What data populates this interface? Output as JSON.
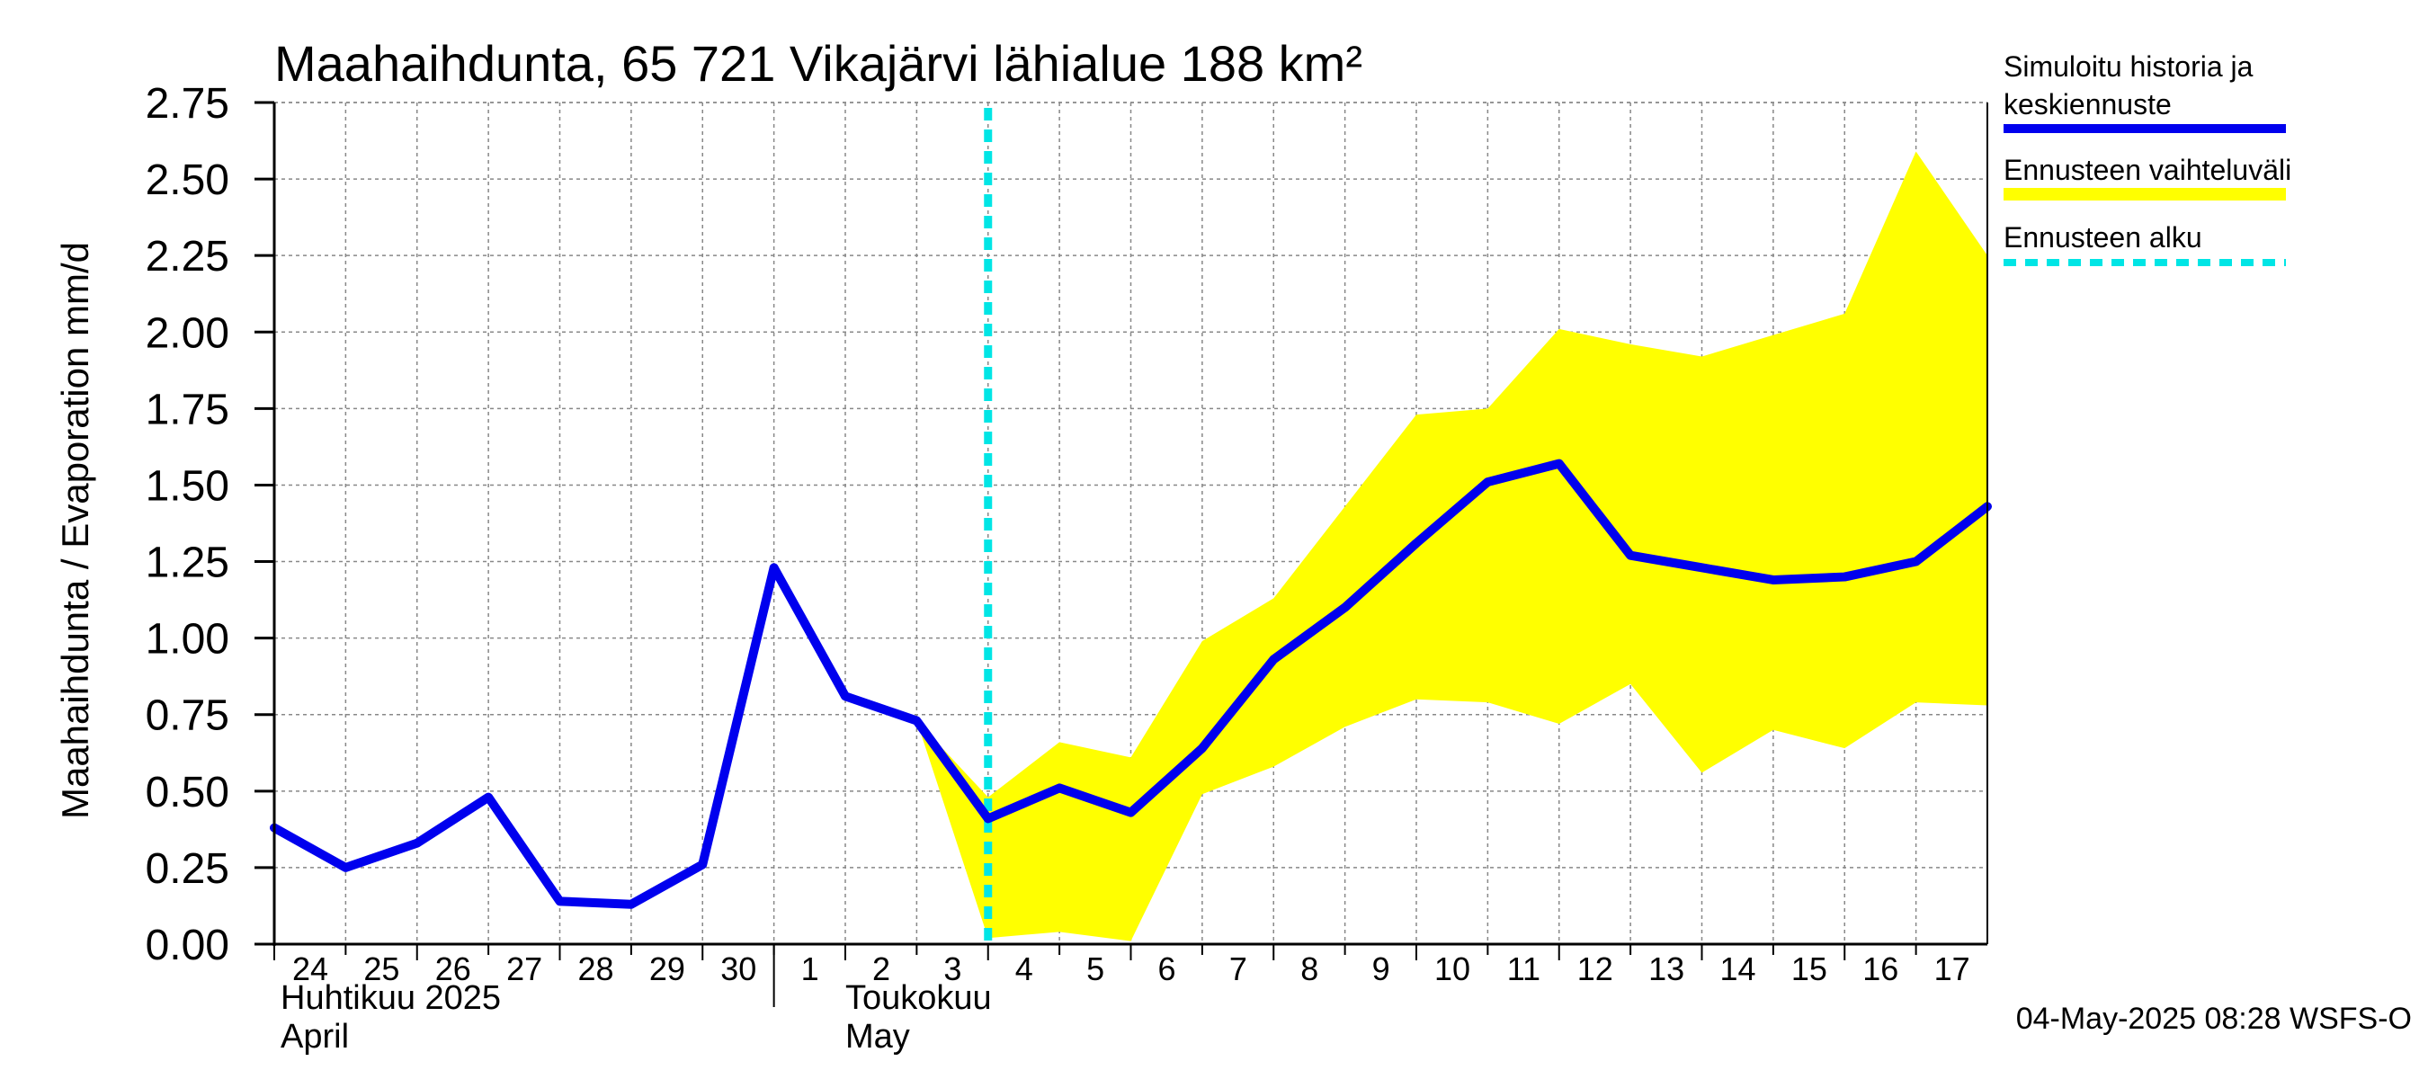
{
  "chart_data": {
    "type": "line",
    "title": "Maahaihdunta, 65 721 Vikajärvi lähialue 188 km²",
    "ylabel": "Maahaihdunta / Evaporation   mm/d",
    "ylim": [
      0,
      2.75
    ],
    "yticks": [
      "0.00",
      "0.25",
      "0.50",
      "0.75",
      "1.00",
      "1.25",
      "1.50",
      "1.75",
      "2.00",
      "2.25",
      "2.50",
      "2.75"
    ],
    "x_ticks": [
      "24",
      "25",
      "26",
      "27",
      "28",
      "29",
      "30",
      "1",
      "2",
      "3",
      "4",
      "5",
      "6",
      "7",
      "8",
      "9",
      "10",
      "11",
      "12",
      "13",
      "14",
      "15",
      "16",
      "17"
    ],
    "month_labels": {
      "april_fi": "Huhtikuu  2025",
      "april_en": "April",
      "may_fi": "Toukokuu",
      "may_en": "May"
    },
    "grid": true,
    "legend_position": "right",
    "legend": {
      "history_line1": "Simuloitu historia ja",
      "history_line2": "keskiennuste",
      "range": "Ennusteen vaihteluväli",
      "start": "Ennusteen alku"
    },
    "forecast_start": "2025-05-04",
    "series": [
      {
        "name": "Simuloitu historia ja keskiennuste",
        "color": "#0000ee",
        "x": [
          "2025-04-24",
          "2025-04-25",
          "2025-04-26",
          "2025-04-27",
          "2025-04-28",
          "2025-04-29",
          "2025-04-30",
          "2025-05-01",
          "2025-05-02",
          "2025-05-03",
          "2025-05-04",
          "2025-05-05",
          "2025-05-06",
          "2025-05-07",
          "2025-05-08",
          "2025-05-09",
          "2025-05-10",
          "2025-05-11",
          "2025-05-12",
          "2025-05-13",
          "2025-05-14",
          "2025-05-15",
          "2025-05-16",
          "2025-05-17",
          "2025-05-18"
        ],
        "values": [
          0.38,
          0.25,
          0.33,
          0.48,
          0.14,
          0.13,
          0.26,
          1.23,
          0.81,
          0.73,
          0.41,
          0.51,
          0.43,
          0.64,
          0.93,
          1.1,
          1.31,
          1.51,
          1.57,
          1.27,
          1.23,
          1.19,
          1.2,
          1.25,
          1.43
        ]
      },
      {
        "name": "Ennusteen vaihteluväli",
        "color": "#ffff00",
        "x": [
          "2025-05-03",
          "2025-05-04",
          "2025-05-05",
          "2025-05-06",
          "2025-05-07",
          "2025-05-08",
          "2025-05-09",
          "2025-05-10",
          "2025-05-11",
          "2025-05-12",
          "2025-05-13",
          "2025-05-14",
          "2025-05-15",
          "2025-05-16",
          "2025-05-17",
          "2025-05-18"
        ],
        "upper": [
          0.73,
          0.48,
          0.66,
          0.61,
          0.99,
          1.13,
          1.43,
          1.73,
          1.75,
          2.01,
          1.96,
          1.92,
          1.99,
          2.06,
          2.59,
          2.25
        ],
        "lower": [
          0.73,
          0.02,
          0.04,
          0.01,
          0.49,
          0.58,
          0.71,
          0.8,
          0.79,
          0.72,
          0.85,
          0.56,
          0.7,
          0.64,
          0.79,
          0.78
        ]
      }
    ],
    "colors": {
      "history": "#0000ee",
      "range": "#ffff00",
      "start": "#00e5e5",
      "grid": "#888888"
    }
  },
  "footer": "04-May-2025 08:28 WSFS-O"
}
